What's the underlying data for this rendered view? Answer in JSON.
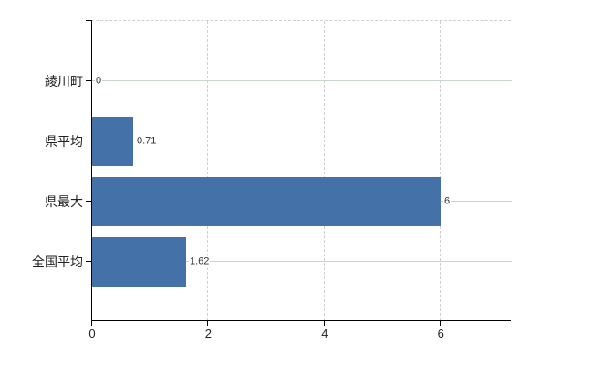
{
  "chart_data": {
    "type": "bar",
    "orientation": "horizontal",
    "title": "",
    "xlabel": "",
    "ylabel": "",
    "categories": [
      "綾川町",
      "県平均",
      "県最大",
      "全国平均"
    ],
    "values": [
      0,
      0.71,
      6,
      1.62
    ],
    "value_labels": [
      "0",
      "0.71",
      "6",
      "1.62"
    ],
    "xlim": [
      0,
      7.22
    ],
    "x_ticks": [
      0,
      2,
      4,
      6
    ],
    "x_tick_labels": [
      "0",
      "2",
      "4",
      "6"
    ],
    "legend": null,
    "grid": {
      "vertical": "dashed at each x tick",
      "horizontal": "solid line at each category center",
      "top_border": "dashed"
    },
    "colors": {
      "bar": "#4472a8",
      "axis": "#000000",
      "h_gridline": "#c9d6c9",
      "v_gridline": "#d4ced4",
      "top_border": "#cfcfcf",
      "value_label_text": "#333333",
      "category_label_text": "#222222"
    }
  }
}
